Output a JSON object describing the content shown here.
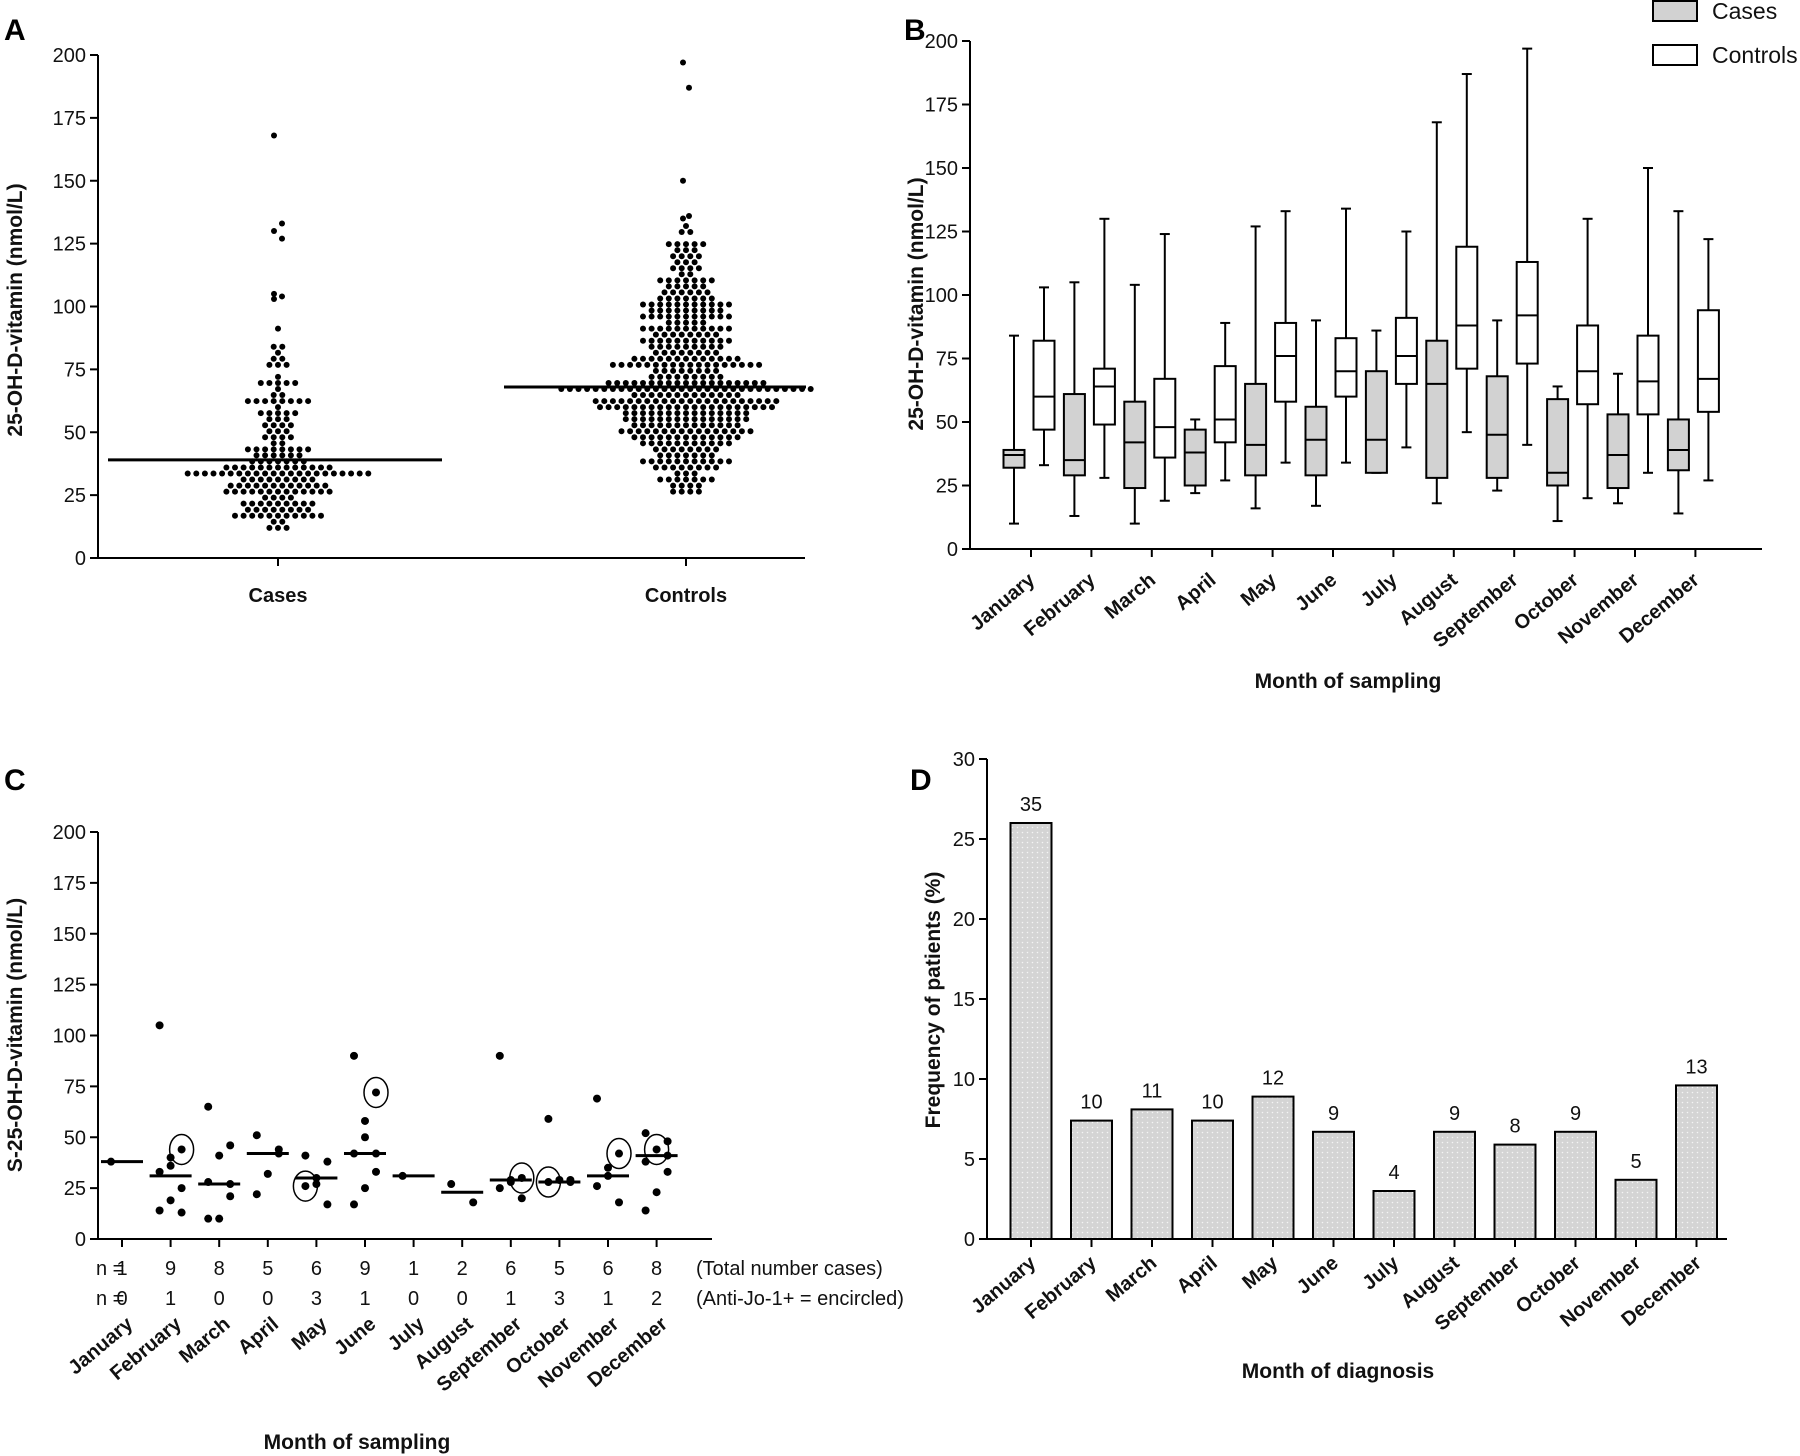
{
  "panel_letters": [
    "A",
    "B",
    "C",
    "D"
  ],
  "colors": {
    "box_cases_fill": "#d2d2d2",
    "box_controls_fill": "#ffffff",
    "bar_fill": "#d4d4d4",
    "ink": "#000000"
  },
  "chart_data": [
    {
      "panel": "A",
      "type": "scatter",
      "ylabel": "25-OH-D-vitamin (nmol/L)",
      "ylim": [
        0,
        200
      ],
      "yticks": [
        0,
        25,
        50,
        75,
        100,
        125,
        150,
        175,
        200
      ],
      "categories": [
        "Cases",
        "Controls"
      ],
      "medians": [
        39,
        68
      ],
      "outlier_points": {
        "Cases": [
          168,
          133,
          130,
          127,
          105,
          104,
          103
        ],
        "Controls": [
          197,
          187,
          150,
          136,
          135
        ]
      }
    },
    {
      "panel": "B",
      "type": "box",
      "ylabel": "25-OH-D-vitamin (nmol/L)",
      "xlabel": "Month of sampling",
      "ylim": [
        0,
        200
      ],
      "yticks": [
        0,
        25,
        50,
        75,
        100,
        125,
        150,
        175,
        200
      ],
      "legend": [
        "Cases",
        "Controls"
      ],
      "legend_position": "top-right",
      "categories": [
        "January",
        "February",
        "March",
        "April",
        "May",
        "June",
        "July",
        "August",
        "September",
        "October",
        "November",
        "December"
      ],
      "series": [
        {
          "name": "Cases",
          "boxes": [
            {
              "min": 10,
              "q1": 32,
              "median": 37,
              "q3": 39,
              "max": 84
            },
            {
              "min": 13,
              "q1": 29,
              "median": 35,
              "q3": 61,
              "max": 105
            },
            {
              "min": 10,
              "q1": 24,
              "median": 42,
              "q3": 58,
              "max": 104
            },
            {
              "min": 22,
              "q1": 25,
              "median": 38,
              "q3": 47,
              "max": 51
            },
            {
              "min": 16,
              "q1": 29,
              "median": 41,
              "q3": 65,
              "max": 127
            },
            {
              "min": 17,
              "q1": 29,
              "median": 43,
              "q3": 56,
              "max": 90
            },
            {
              "min": 30,
              "q1": 30,
              "median": 43,
              "q3": 70,
              "max": 86
            },
            {
              "min": 18,
              "q1": 28,
              "median": 65,
              "q3": 82,
              "max": 168
            },
            {
              "min": 23,
              "q1": 28,
              "median": 45,
              "q3": 68,
              "max": 90
            },
            {
              "min": 11,
              "q1": 25,
              "median": 30,
              "q3": 59,
              "max": 64
            },
            {
              "min": 18,
              "q1": 24,
              "median": 37,
              "q3": 53,
              "max": 69
            },
            {
              "min": 14,
              "q1": 31,
              "median": 39,
              "q3": 51,
              "max": 133
            }
          ]
        },
        {
          "name": "Controls",
          "boxes": [
            {
              "min": 33,
              "q1": 47,
              "median": 60,
              "q3": 82,
              "max": 103
            },
            {
              "min": 28,
              "q1": 49,
              "median": 64,
              "q3": 71,
              "max": 130
            },
            {
              "min": 19,
              "q1": 36,
              "median": 48,
              "q3": 67,
              "max": 124
            },
            {
              "min": 27,
              "q1": 42,
              "median": 51,
              "q3": 72,
              "max": 89
            },
            {
              "min": 34,
              "q1": 58,
              "median": 76,
              "q3": 89,
              "max": 133
            },
            {
              "min": 34,
              "q1": 60,
              "median": 70,
              "q3": 83,
              "max": 134
            },
            {
              "min": 40,
              "q1": 65,
              "median": 76,
              "q3": 91,
              "max": 125
            },
            {
              "min": 46,
              "q1": 71,
              "median": 88,
              "q3": 119,
              "max": 187
            },
            {
              "min": 41,
              "q1": 73,
              "median": 92,
              "q3": 113,
              "max": 197
            },
            {
              "min": 20,
              "q1": 57,
              "median": 70,
              "q3": 88,
              "max": 130
            },
            {
              "min": 30,
              "q1": 53,
              "median": 66,
              "q3": 84,
              "max": 150
            },
            {
              "min": 27,
              "q1": 54,
              "median": 67,
              "q3": 94,
              "max": 122
            }
          ]
        }
      ]
    },
    {
      "panel": "C",
      "type": "scatter",
      "ylabel": "S-25-OH-D-vitamin (nmol/L)",
      "xlabel": "Month of sampling",
      "ylim": [
        0,
        200
      ],
      "yticks": [
        0,
        25,
        50,
        75,
        100,
        125,
        150,
        175,
        200
      ],
      "categories": [
        "January",
        "February",
        "March",
        "April",
        "May",
        "June",
        "July",
        "August",
        "September",
        "October",
        "November",
        "December"
      ],
      "medians": [
        38,
        31,
        27,
        42,
        30,
        42,
        31,
        23,
        29,
        28,
        31,
        41
      ],
      "points": [
        [
          38
        ],
        [
          105,
          44,
          40,
          33,
          25,
          19,
          14,
          13,
          36
        ],
        [
          65,
          46,
          41,
          28,
          21,
          10,
          10,
          27
        ],
        [
          51,
          44,
          32,
          22,
          42
        ],
        [
          41,
          38,
          27,
          26,
          17,
          30
        ],
        [
          90,
          72,
          58,
          42,
          33,
          25,
          17,
          42,
          50
        ],
        [
          31
        ],
        [
          27,
          18
        ],
        [
          90,
          30,
          29,
          25,
          20,
          28
        ],
        [
          59,
          29,
          29,
          28,
          28
        ],
        [
          69,
          42,
          35,
          26,
          18,
          31
        ],
        [
          52,
          48,
          44,
          38,
          33,
          23,
          14,
          41
        ]
      ],
      "encircled": [
        [],
        [
          1
        ],
        [],
        [],
        [
          3
        ],
        [
          1
        ],
        [],
        [],
        [
          1
        ],
        [
          3
        ],
        [
          1
        ],
        [
          2
        ]
      ],
      "n_rows": [
        {
          "prefix": "n =",
          "values": [
            "1",
            "9",
            "8",
            "5",
            "6",
            "9",
            "1",
            "2",
            "6",
            "5",
            "6",
            "8"
          ],
          "note": "(Total number cases)"
        },
        {
          "prefix": "n =",
          "values": [
            "0",
            "1",
            "0",
            "0",
            "3",
            "1",
            "0",
            "0",
            "1",
            "3",
            "1",
            "2"
          ],
          "note": "(Anti-Jo-1+ = encircled)"
        }
      ]
    },
    {
      "panel": "D",
      "type": "bar",
      "ylabel": "Frequency of patients (%)",
      "xlabel": "Month of diagnosis",
      "ylim": [
        0,
        30
      ],
      "yticks": [
        0,
        5,
        10,
        15,
        20,
        25,
        30
      ],
      "categories": [
        "January",
        "February",
        "March",
        "April",
        "May",
        "June",
        "July",
        "August",
        "September",
        "October",
        "November",
        "December"
      ],
      "values": [
        26.0,
        7.4,
        8.1,
        7.4,
        8.9,
        6.7,
        3.0,
        6.7,
        5.9,
        6.7,
        3.7,
        9.6
      ],
      "bar_labels": [
        "35",
        "10",
        "11",
        "10",
        "12",
        "9",
        "4",
        "9",
        "8",
        "9",
        "5",
        "13"
      ]
    }
  ]
}
